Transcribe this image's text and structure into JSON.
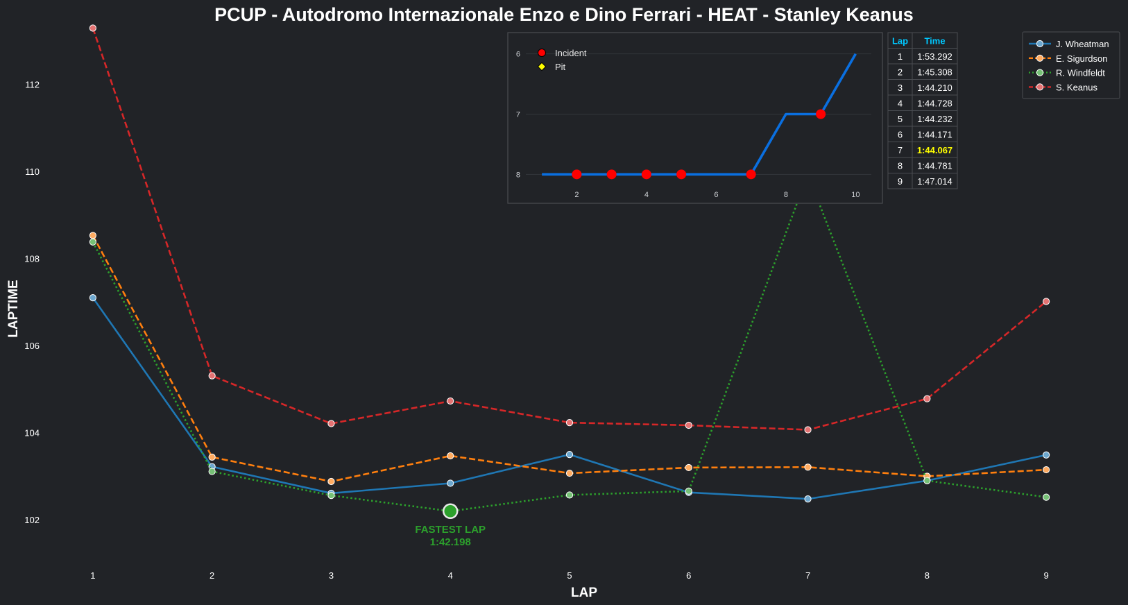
{
  "chart_data": {
    "type": "line",
    "title": "PCUP - Autodromo Internazionale Enzo e Dino Ferrari - HEAT - Stanley Keanus",
    "xlabel": "LAP",
    "ylabel": "LAPTIME",
    "x": [
      1,
      2,
      3,
      4,
      5,
      6,
      7,
      8,
      9
    ],
    "xlim": [
      0.5,
      9.5
    ],
    "ylim": [
      101.0,
      113.3
    ],
    "yticks": [
      102,
      104,
      106,
      108,
      110,
      112
    ],
    "grid": false,
    "legend_position": "top-right",
    "series": [
      {
        "name": "J. Wheatman",
        "color": "#1f77b4",
        "style": "solid",
        "values": [
          107.1,
          103.22,
          102.61,
          102.84,
          103.5,
          102.63,
          102.48,
          102.9,
          103.49
        ]
      },
      {
        "name": "E. Sigurdson",
        "color": "#ff7f0e",
        "style": "dashed",
        "values": [
          108.53,
          103.44,
          102.88,
          103.47,
          103.07,
          103.2,
          103.21,
          103.0,
          103.15
        ]
      },
      {
        "name": "R. Windfeldt",
        "color": "#2ca02c",
        "style": "dotted",
        "values": [
          108.38,
          103.11,
          102.56,
          102.198,
          102.57,
          102.66,
          109.93,
          102.9,
          102.52
        ]
      },
      {
        "name": "S. Keanus",
        "color": "#d62728",
        "style": "dashed",
        "values": [
          113.292,
          105.308,
          104.21,
          104.728,
          104.232,
          104.171,
          104.067,
          104.781,
          107.014
        ]
      }
    ],
    "annotation": {
      "label": "FASTEST LAP",
      "value": "1:42.198",
      "lap": 4,
      "laptime": 102.198,
      "color": "#2ca02c"
    },
    "inset": {
      "type": "line",
      "x": [
        1,
        2,
        3,
        4,
        5,
        6,
        7,
        8,
        9,
        10
      ],
      "positions": [
        8,
        8,
        8,
        8,
        8,
        8,
        8,
        7,
        7,
        6
      ],
      "xticks": [
        2,
        4,
        6,
        8,
        10
      ],
      "yticks": [
        6,
        7,
        8
      ],
      "xlim": [
        0.5,
        10.45
      ],
      "ylim": [
        8.1,
        5.9
      ],
      "line_color": "#0a6fe0",
      "incident_laps": [
        2,
        3,
        4,
        5,
        7,
        9
      ],
      "pit_laps": [],
      "legend": [
        {
          "label": "Incident",
          "marker": "circle",
          "color": "#ff0000"
        },
        {
          "label": "Pit",
          "marker": "diamond",
          "color": "#ffff00"
        }
      ]
    },
    "lap_table": {
      "headers": [
        "Lap",
        "Time"
      ],
      "rows": [
        [
          "1",
          "1:53.292"
        ],
        [
          "2",
          "1:45.308"
        ],
        [
          "3",
          "1:44.210"
        ],
        [
          "4",
          "1:44.728"
        ],
        [
          "5",
          "1:44.232"
        ],
        [
          "6",
          "1:44.171"
        ],
        [
          "7",
          "1:44.067"
        ],
        [
          "8",
          "1:44.781"
        ],
        [
          "9",
          "1:47.014"
        ]
      ],
      "best_row": 6
    }
  }
}
